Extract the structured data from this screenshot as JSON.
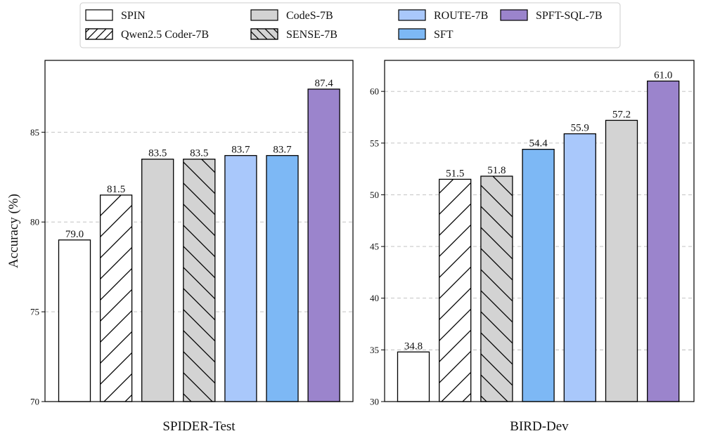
{
  "legend": {
    "entries": [
      {
        "label": "SPIN",
        "color": "#ffffff",
        "hatch": "none"
      },
      {
        "label": "Qwen2.5 Coder-7B",
        "color": "#ffffff",
        "hatch": "forward"
      },
      {
        "label": "CodeS-7B",
        "color": "#d3d3d3",
        "hatch": "none"
      },
      {
        "label": "SENSE-7B",
        "color": "#d3d3d3",
        "hatch": "back"
      },
      {
        "label": "ROUTE-7B",
        "color": "#a9c8fb",
        "hatch": "none"
      },
      {
        "label": "SFT",
        "color": "#7db8f5",
        "hatch": "none"
      },
      {
        "label": "SPFT-SQL-7B",
        "color": "#9b84cc",
        "hatch": "none"
      }
    ]
  },
  "chart_data": [
    {
      "type": "bar",
      "title": "SPIDER-Test",
      "ylabel": "Accuracy (%)",
      "xlabel": "",
      "ylim": [
        70,
        89
      ],
      "yticks": [
        70,
        75,
        80,
        85
      ],
      "grid": true,
      "bars": [
        {
          "model": "SPIN",
          "value": 79.0,
          "label": "79.0"
        },
        {
          "model": "Qwen2.5 Coder-7B",
          "value": 81.5,
          "label": "81.5"
        },
        {
          "model": "CodeS-7B",
          "value": 83.5,
          "label": "83.5"
        },
        {
          "model": "SENSE-7B",
          "value": 83.5,
          "label": "83.5"
        },
        {
          "model": "ROUTE-7B",
          "value": 83.7,
          "label": "83.7"
        },
        {
          "model": "SFT",
          "value": 83.7,
          "label": "83.7"
        },
        {
          "model": "SPFT-SQL-7B",
          "value": 87.4,
          "label": "87.4"
        }
      ]
    },
    {
      "type": "bar",
      "title": "BIRD-Dev",
      "ylabel": "",
      "xlabel": "",
      "ylim": [
        30,
        63
      ],
      "yticks": [
        30,
        35,
        40,
        45,
        50,
        55,
        60
      ],
      "grid": true,
      "bars": [
        {
          "model": "SPIN",
          "value": 34.8,
          "label": "34.8"
        },
        {
          "model": "Qwen2.5 Coder-7B",
          "value": 51.5,
          "label": "51.5"
        },
        {
          "model": "SENSE-7B",
          "value": 51.8,
          "label": "51.8"
        },
        {
          "model": "SFT",
          "value": 54.4,
          "label": "54.4"
        },
        {
          "model": "ROUTE-7B",
          "value": 55.9,
          "label": "55.9"
        },
        {
          "model": "CodeS-7B",
          "value": 57.2,
          "label": "57.2"
        },
        {
          "model": "SPFT-SQL-7B",
          "value": 61.0,
          "label": "61.0"
        }
      ]
    }
  ]
}
